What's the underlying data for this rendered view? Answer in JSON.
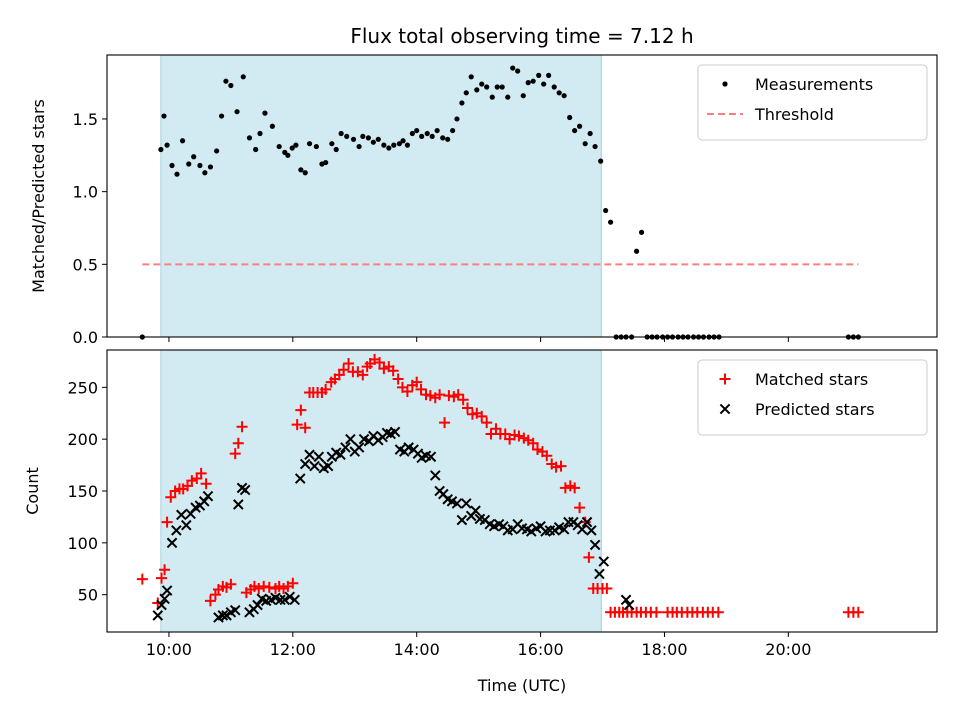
{
  "title": "Flux total observing time = 7.12 h",
  "chart_data": [
    {
      "type": "scatter",
      "ylabel": "Matched/Predicted stars",
      "xlabel": "",
      "xlim": [
        9.0,
        22.4
      ],
      "ylim": [
        0,
        1.94
      ],
      "yticks": [
        0.0,
        0.5,
        1.0,
        1.5
      ],
      "ytick_labels": [
        "0.0",
        "0.5",
        "1.0",
        "1.5"
      ],
      "xticks": [
        10,
        12,
        14,
        16,
        18,
        20
      ],
      "shaded_span": [
        9.87,
        16.98
      ],
      "shade_color": "#add8e6",
      "legend_position": "upper right",
      "series": [
        {
          "name": "Measurements",
          "marker": "dot",
          "color": "#000000",
          "x": [
            9.57,
            9.87,
            9.92,
            9.97,
            10.05,
            10.13,
            10.22,
            10.32,
            10.4,
            10.5,
            10.58,
            10.67,
            10.77,
            10.85,
            10.92,
            11.0,
            11.1,
            11.2,
            11.3,
            11.4,
            11.47,
            11.55,
            11.67,
            11.78,
            11.87,
            11.92,
            11.99,
            12.05,
            12.13,
            12.2,
            12.27,
            12.38,
            12.47,
            12.53,
            12.63,
            12.7,
            12.78,
            12.87,
            12.98,
            13.07,
            13.13,
            13.22,
            13.3,
            13.38,
            13.47,
            13.55,
            13.63,
            13.72,
            13.78,
            13.85,
            13.93,
            14.0,
            14.08,
            14.17,
            14.25,
            14.33,
            14.42,
            14.5,
            14.58,
            14.65,
            14.73,
            14.8,
            14.88,
            14.97,
            15.05,
            15.13,
            15.22,
            15.3,
            15.38,
            15.47,
            15.55,
            15.63,
            15.72,
            15.8,
            15.88,
            15.97,
            16.05,
            16.13,
            16.22,
            16.3,
            16.38,
            16.47,
            16.55,
            16.63,
            16.72,
            16.8,
            16.88,
            16.97,
            17.05,
            17.13,
            17.22,
            17.3,
            17.38,
            17.47,
            17.55,
            17.63,
            17.72,
            17.8,
            17.88,
            17.97,
            18.05,
            18.13,
            18.22,
            18.3,
            18.38,
            18.47,
            18.55,
            18.63,
            18.72,
            18.8,
            18.88,
            20.97,
            21.05,
            21.13
          ],
          "y": [
            0.0,
            1.29,
            1.52,
            1.32,
            1.18,
            1.12,
            1.35,
            1.19,
            1.24,
            1.18,
            1.13,
            1.17,
            1.28,
            1.52,
            1.76,
            1.73,
            1.55,
            1.79,
            1.37,
            1.29,
            1.4,
            1.54,
            1.45,
            1.31,
            1.27,
            1.25,
            1.3,
            1.32,
            1.15,
            1.13,
            1.33,
            1.31,
            1.19,
            1.2,
            1.33,
            1.29,
            1.4,
            1.38,
            1.36,
            1.31,
            1.38,
            1.37,
            1.34,
            1.36,
            1.32,
            1.3,
            1.32,
            1.33,
            1.35,
            1.32,
            1.4,
            1.42,
            1.38,
            1.4,
            1.38,
            1.42,
            1.37,
            1.36,
            1.42,
            1.5,
            1.61,
            1.68,
            1.79,
            1.7,
            1.74,
            1.72,
            1.65,
            1.72,
            1.72,
            1.65,
            1.85,
            1.83,
            1.66,
            1.75,
            1.76,
            1.8,
            1.74,
            1.8,
            1.72,
            1.68,
            1.66,
            1.51,
            1.42,
            1.45,
            1.33,
            1.4,
            1.31,
            1.21,
            0.87,
            0.79,
            0.0,
            0.0,
            0.0,
            0.0,
            0.59,
            0.72,
            0.0,
            0.0,
            0.0,
            0.0,
            0.0,
            0.0,
            0.0,
            0.0,
            0.0,
            0.0,
            0.0,
            0.0,
            0.0,
            0.0,
            0.0,
            0.0,
            0.0,
            0.0
          ]
        },
        {
          "name": "Threshold",
          "marker": "dashed-line",
          "color": "#ff7f7f",
          "x": [
            9.57,
            21.13
          ],
          "y": [
            0.5,
            0.5
          ]
        }
      ]
    },
    {
      "type": "scatter",
      "ylabel": "Count",
      "xlabel": "Time (UTC)",
      "xlim": [
        9.0,
        22.4
      ],
      "ylim": [
        14,
        286
      ],
      "yticks": [
        50,
        100,
        150,
        200,
        250
      ],
      "ytick_labels": [
        "50",
        "100",
        "150",
        "200",
        "250"
      ],
      "xticks": [
        10,
        12,
        14,
        16,
        18,
        20
      ],
      "xtick_labels": [
        "10:00",
        "12:00",
        "14:00",
        "16:00",
        "18:00",
        "20:00"
      ],
      "shaded_span": [
        9.87,
        16.98
      ],
      "shade_color": "#add8e6",
      "legend_position": "upper right",
      "series": [
        {
          "name": "Matched stars",
          "marker": "plus",
          "color": "#ff0000",
          "x": [
            9.57,
            9.82,
            9.88,
            9.93,
            9.97,
            10.03,
            10.1,
            10.17,
            10.23,
            10.3,
            10.37,
            10.45,
            10.52,
            10.6,
            10.67,
            10.75,
            10.8,
            10.87,
            10.93,
            11.0,
            11.07,
            11.12,
            11.18,
            11.25,
            11.32,
            11.38,
            11.45,
            11.53,
            11.62,
            11.72,
            11.78,
            11.85,
            11.92,
            12.0,
            12.07,
            12.13,
            12.2,
            12.27,
            12.33,
            12.4,
            12.47,
            12.53,
            12.62,
            12.68,
            12.75,
            12.82,
            12.9,
            12.97,
            13.05,
            13.13,
            13.2,
            13.25,
            13.32,
            13.4,
            13.47,
            13.55,
            13.62,
            13.7,
            13.77,
            13.85,
            13.93,
            14.0,
            14.07,
            14.15,
            14.22,
            14.3,
            14.37,
            14.45,
            14.52,
            14.6,
            14.67,
            14.75,
            14.82,
            14.9,
            14.97,
            15.05,
            15.13,
            15.2,
            15.28,
            15.35,
            15.43,
            15.5,
            15.58,
            15.65,
            15.73,
            15.8,
            15.88,
            15.95,
            16.03,
            16.1,
            16.18,
            16.25,
            16.33,
            16.4,
            16.48,
            16.55,
            16.63,
            16.72,
            16.78,
            16.85,
            16.92,
            17.0,
            17.07,
            17.13,
            17.2,
            17.27,
            17.33,
            17.4,
            17.47,
            17.55,
            17.62,
            17.7,
            17.78,
            17.87,
            18.05,
            18.13,
            18.2,
            18.28,
            18.37,
            18.45,
            18.53,
            18.62,
            18.7,
            18.78,
            18.87,
            20.97,
            21.05,
            21.13
          ],
          "y": [
            65,
            42,
            66,
            74,
            120,
            144,
            150,
            152,
            152,
            155,
            160,
            162,
            167,
            157,
            44,
            50,
            55,
            58,
            57,
            60,
            186,
            196,
            212,
            52,
            55,
            58,
            56,
            58,
            57,
            56,
            58,
            56,
            58,
            61,
            214,
            228,
            211,
            245,
            245,
            245,
            245,
            248,
            255,
            258,
            262,
            267,
            273,
            265,
            265,
            262,
            270,
            273,
            277,
            274,
            268,
            270,
            266,
            258,
            250,
            246,
            252,
            255,
            248,
            243,
            242,
            240,
            243,
            216,
            242,
            241,
            243,
            238,
            230,
            224,
            225,
            222,
            216,
            205,
            210,
            205,
            205,
            200,
            204,
            203,
            201,
            199,
            196,
            190,
            188,
            184,
            176,
            173,
            174,
            153,
            155,
            153,
            134,
            120,
            86,
            56,
            56,
            56,
            56,
            33,
            33,
            33,
            33,
            33,
            33,
            33,
            33,
            33,
            33,
            33,
            33,
            33,
            33,
            33,
            33,
            33,
            33,
            33,
            33,
            33,
            33,
            33,
            33,
            33
          ]
        },
        {
          "name": "Predicted stars",
          "marker": "x",
          "color": "#000000",
          "x": [
            9.82,
            9.88,
            9.93,
            9.97,
            10.05,
            10.12,
            10.2,
            10.28,
            10.35,
            10.43,
            10.5,
            10.57,
            10.63,
            10.8,
            10.87,
            10.93,
            11.0,
            11.07,
            11.12,
            11.18,
            11.23,
            11.3,
            11.37,
            11.43,
            11.5,
            11.57,
            11.65,
            11.72,
            11.8,
            11.87,
            11.95,
            12.03,
            12.12,
            12.2,
            12.27,
            12.35,
            12.42,
            12.5,
            12.57,
            12.63,
            12.7,
            12.77,
            12.85,
            12.93,
            13.0,
            13.07,
            13.15,
            13.23,
            13.3,
            13.38,
            13.45,
            13.52,
            13.58,
            13.65,
            13.73,
            13.8,
            13.87,
            13.95,
            14.02,
            14.08,
            14.15,
            14.23,
            14.3,
            14.37,
            14.43,
            14.5,
            14.57,
            14.65,
            14.73,
            14.8,
            14.88,
            14.95,
            15.02,
            15.1,
            15.18,
            15.25,
            15.33,
            15.4,
            15.47,
            15.55,
            15.63,
            15.7,
            15.78,
            15.85,
            15.93,
            16.0,
            16.08,
            16.15,
            16.23,
            16.3,
            16.38,
            16.45,
            16.53,
            16.6,
            16.67,
            16.75,
            16.82,
            16.88,
            16.95,
            17.02,
            17.38,
            17.43
          ],
          "y": [
            30,
            40,
            46,
            54,
            100,
            112,
            127,
            117,
            128,
            134,
            136,
            140,
            145,
            28,
            30,
            30,
            33,
            35,
            137,
            153,
            151,
            33,
            36,
            40,
            46,
            44,
            45,
            47,
            45,
            45,
            48,
            45,
            162,
            176,
            185,
            174,
            183,
            172,
            174,
            183,
            187,
            185,
            192,
            200,
            188,
            192,
            200,
            198,
            203,
            199,
            202,
            206,
            205,
            207,
            190,
            188,
            192,
            190,
            186,
            182,
            184,
            183,
            165,
            150,
            147,
            142,
            140,
            138,
            122,
            138,
            126,
            131,
            123,
            122,
            118,
            116,
            118,
            116,
            112,
            113,
            118,
            114,
            113,
            111,
            114,
            116,
            111,
            112,
            112,
            115,
            113,
            120,
            120,
            117,
            113,
            120,
            112,
            98,
            70,
            82,
            45,
            40
          ]
        }
      ]
    }
  ]
}
